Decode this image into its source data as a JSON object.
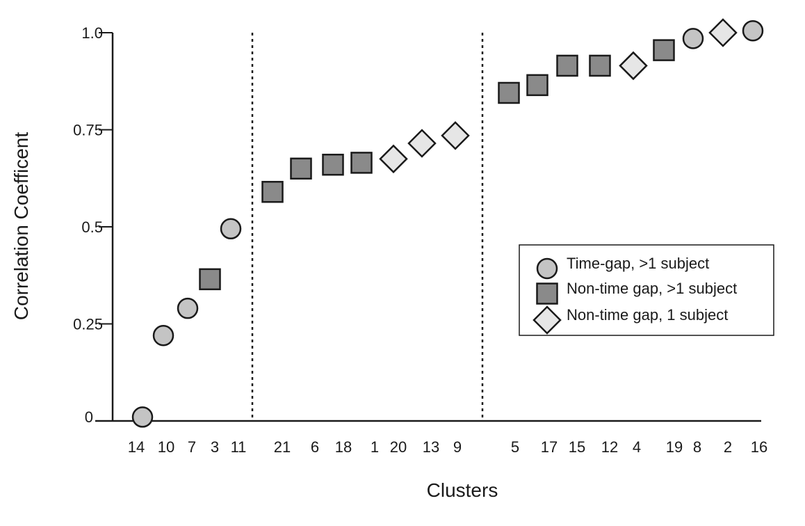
{
  "chart_data": {
    "type": "scatter",
    "xlabel": "Clusters",
    "ylabel": "Correlation Coefficent",
    "ylim": [
      0,
      1.0
    ],
    "y_ticks": [
      {
        "value": 0,
        "label": "0"
      },
      {
        "value": 0.25,
        "label": "0.25"
      },
      {
        "value": 0.5,
        "label": "0.5"
      },
      {
        "value": 0.75,
        "label": "0.75"
      },
      {
        "value": 1.0,
        "label": "1.0"
      }
    ],
    "grid": false,
    "legend_position": "right",
    "groups": [
      {
        "separator_after": true
      },
      {
        "separator_after": true
      },
      {
        "separator_after": false
      }
    ],
    "series": [
      {
        "name": "Time-gap, >1 subject",
        "marker": "circle",
        "fill": "#c4c4c4",
        "points": [
          {
            "cluster": "14",
            "group": 0,
            "y": 0.01
          },
          {
            "cluster": "10",
            "group": 0,
            "y": 0.22
          },
          {
            "cluster": "7",
            "group": 0,
            "y": 0.29
          },
          {
            "cluster": "11",
            "group": 0,
            "y": 0.495
          },
          {
            "cluster": "8",
            "group": 2,
            "y": 0.985
          },
          {
            "cluster": "16",
            "group": 2,
            "y": 1.005
          }
        ]
      },
      {
        "name": "Non-time gap, >1 subject",
        "marker": "square",
        "fill": "#8a8a8a",
        "points": [
          {
            "cluster": "3",
            "group": 0,
            "y": 0.365
          },
          {
            "cluster": "21",
            "group": 1,
            "y": 0.59
          },
          {
            "cluster": "6",
            "group": 1,
            "y": 0.65
          },
          {
            "cluster": "18",
            "group": 1,
            "y": 0.66
          },
          {
            "cluster": "1",
            "group": 1,
            "y": 0.665
          },
          {
            "cluster": "5",
            "group": 2,
            "y": 0.845
          },
          {
            "cluster": "17",
            "group": 2,
            "y": 0.865
          },
          {
            "cluster": "15",
            "group": 2,
            "y": 0.915
          },
          {
            "cluster": "12",
            "group": 2,
            "y": 0.915
          },
          {
            "cluster": "19",
            "group": 2,
            "y": 0.955
          }
        ]
      },
      {
        "name": "Non-time gap, 1 subject",
        "marker": "diamond",
        "fill": "#e6e6e6",
        "points": [
          {
            "cluster": "20",
            "group": 1,
            "y": 0.675
          },
          {
            "cluster": "13",
            "group": 1,
            "y": 0.715
          },
          {
            "cluster": "9",
            "group": 1,
            "y": 0.735
          },
          {
            "cluster": "4",
            "group": 2,
            "y": 0.915
          },
          {
            "cluster": "2",
            "group": 2,
            "y": 1.0
          }
        ]
      }
    ],
    "order": [
      [
        "14",
        "10",
        "7",
        "3",
        "11"
      ],
      [
        "21",
        "6",
        "18",
        "1",
        "20",
        "13",
        "9"
      ],
      [
        "5",
        "17",
        "15",
        "12",
        "4",
        "19",
        "8",
        "2",
        "16"
      ]
    ]
  },
  "colors": {
    "axis": "#1a1a1a",
    "circle_fill": "#c4c4c4",
    "square_fill": "#8a8a8a",
    "diamond_fill": "#e6e6e6"
  }
}
